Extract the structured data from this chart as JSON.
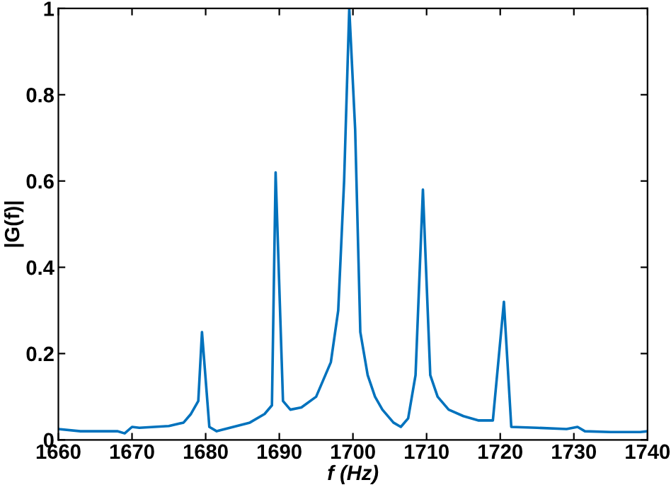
{
  "chart_data": {
    "type": "line",
    "xlabel": "f (Hz)",
    "ylabel": "|G(f)|",
    "xlim": [
      1660,
      1740
    ],
    "ylim": [
      0,
      1
    ],
    "xticks": [
      1660,
      1670,
      1680,
      1690,
      1700,
      1710,
      1720,
      1730,
      1740
    ],
    "yticks": [
      0,
      0.2,
      0.4,
      0.6,
      0.8,
      1
    ],
    "grid": false,
    "line_style": "solid",
    "marker": "none",
    "series": [
      {
        "color": "#0072bd",
        "x": [
          1660,
          1663,
          1668,
          1669,
          1670,
          1671,
          1675,
          1677,
          1678,
          1679,
          1679.5,
          1680.5,
          1681.5,
          1686,
          1688,
          1689,
          1689.5,
          1690.5,
          1691.5,
          1693,
          1695,
          1697,
          1698,
          1698.8,
          1699.5,
          1700.3,
          1701,
          1702,
          1703,
          1704,
          1705.5,
          1706.5,
          1707.5,
          1708.5,
          1709.5,
          1710.5,
          1711.5,
          1713,
          1715,
          1717,
          1719,
          1720.5,
          1721.5,
          1725,
          1729,
          1730.5,
          1731.5,
          1735,
          1739,
          1740
        ],
        "values": [
          0.025,
          0.02,
          0.02,
          0.015,
          0.03,
          0.028,
          0.032,
          0.04,
          0.06,
          0.09,
          0.25,
          0.03,
          0.02,
          0.04,
          0.06,
          0.08,
          0.62,
          0.09,
          0.07,
          0.075,
          0.1,
          0.18,
          0.3,
          0.6,
          1.0,
          0.72,
          0.25,
          0.15,
          0.1,
          0.07,
          0.04,
          0.03,
          0.05,
          0.15,
          0.58,
          0.15,
          0.1,
          0.07,
          0.055,
          0.045,
          0.045,
          0.32,
          0.03,
          0.028,
          0.025,
          0.03,
          0.02,
          0.018,
          0.018,
          0.02
        ]
      }
    ]
  }
}
